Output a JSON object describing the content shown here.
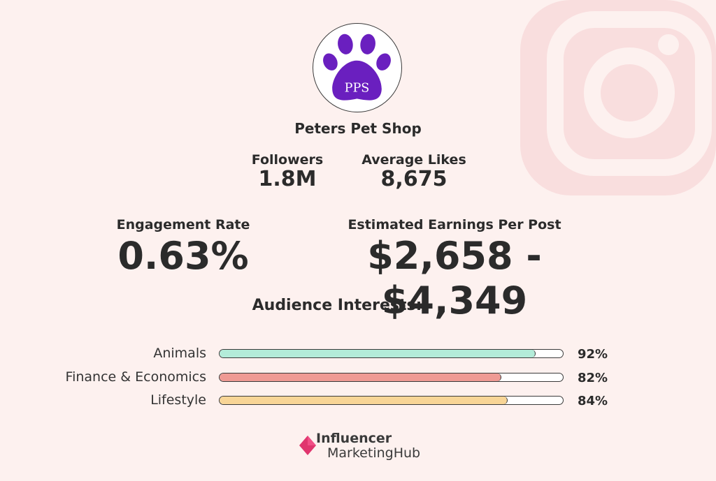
{
  "profile": {
    "name": "Peters Pet Shop",
    "avatar_text": "PPS",
    "avatar_color": "#6a1fbf"
  },
  "stats": {
    "followers_label": "Followers",
    "followers_value": "1.8M",
    "avg_likes_label": "Average Likes",
    "avg_likes_value": "8,675",
    "engagement_label": "Engagement Rate",
    "engagement_value": "0.63%",
    "earnings_label": "Estimated Earnings Per Post",
    "earnings_value": "$2,658 - $4,349"
  },
  "audience": {
    "title": "Audience Interests:",
    "items": [
      {
        "label": "Animals",
        "percent_text": "92%",
        "percent": 92,
        "color": "#b3ecd9"
      },
      {
        "label": "Finance & Economics",
        "percent_text": "82%",
        "percent": 82,
        "color": "#ef9a94"
      },
      {
        "label": "Lifestyle",
        "percent_text": "84%",
        "percent": 84,
        "color": "#f8d596"
      }
    ]
  },
  "brand": {
    "line1": "Influencer",
    "line2": "MarketingHub",
    "color": "#e0356e"
  },
  "watermark": {
    "icon": "instagram-icon",
    "color": "#f7dcdc"
  }
}
